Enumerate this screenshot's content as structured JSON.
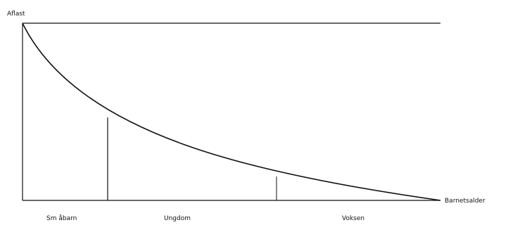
{
  "diagram": {
    "y_axis_label": "Aflast",
    "x_axis_label": "Barnetsalder",
    "phases": [
      {
        "label": "Sm åbarn"
      },
      {
        "label": "Ungdom"
      },
      {
        "label": "Voksen"
      }
    ],
    "colors": {
      "line": "#111111",
      "frame": "#111111",
      "background": "#ffffff"
    }
  }
}
